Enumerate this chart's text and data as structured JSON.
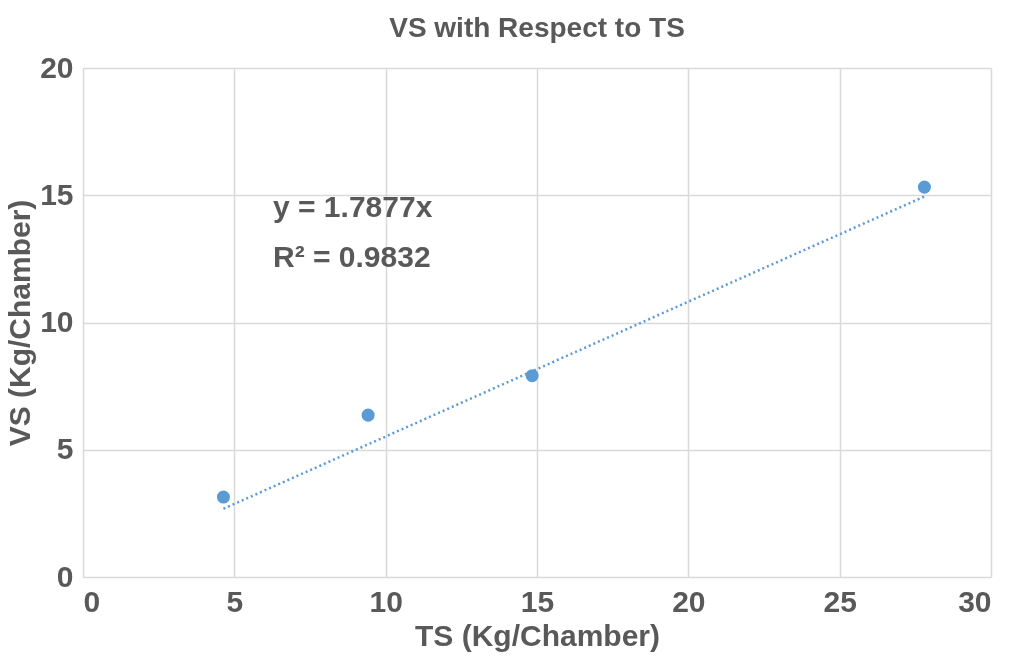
{
  "chart_data": {
    "type": "scatter",
    "title": "VS with Respect to TS",
    "xlabel": "TS (Kg/Chamber)",
    "ylabel": "VS (Kg/Chamber)",
    "x": [
      4.64,
      9.42,
      14.84,
      27.8
    ],
    "series": [
      {
        "color": "#5b9bd5",
        "values": [
          3.14,
          6.36,
          7.91,
          15.32
        ]
      },
      {
        "type": "line",
        "color": "#5b9bd5",
        "x": [
          4.64,
          27.8
        ],
        "values": [
          2.68,
          14.95
        ],
        "line_style": "dotted",
        "marker": "none"
      }
    ],
    "xlim": [
      0,
      30
    ],
    "xticks": [
      0,
      5,
      10,
      15,
      20,
      25,
      30
    ],
    "ylim": [
      0,
      20
    ],
    "yticks": [
      0,
      5,
      10,
      15,
      20
    ],
    "grid": true,
    "marker": "circle",
    "annotations": [
      "y = 1.7877x",
      "R² = 0.9832"
    ]
  }
}
